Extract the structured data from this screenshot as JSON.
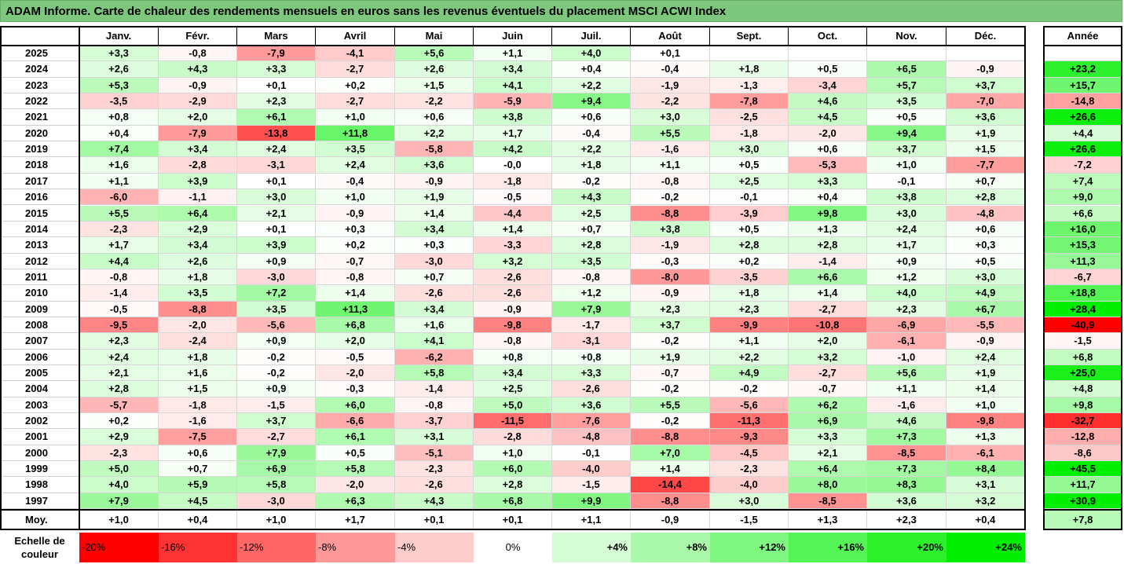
{
  "title": "ADAM Informe. Carte de chaleur des rendements mensuels en euros sans les revenus éventuels du placement MSCI ACWI Index",
  "chart_data": {
    "type": "heatmap",
    "title": "ADAM Informe. Carte de chaleur des rendements mensuels en euros sans les revenus éventuels du placement MSCI ACWI Index",
    "columns": [
      "Janv.",
      "Févr.",
      "Mars",
      "Avril",
      "Mai",
      "Juin",
      "Juil.",
      "Août",
      "Sept.",
      "Oct.",
      "Nov.",
      "Déc."
    ],
    "annual_header": "Année",
    "rows": [
      {
        "year": "2025",
        "values": [
          "+3,3",
          "-0,8",
          "-7,9",
          "-4,1",
          "+5,6",
          "+1,1",
          "+4,0",
          "+0,1",
          "",
          "",
          "",
          ""
        ],
        "annual": ""
      },
      {
        "year": "2024",
        "values": [
          "+2,6",
          "+4,3",
          "+3,3",
          "-2,7",
          "+2,6",
          "+3,4",
          "+0,4",
          "-0,4",
          "+1,8",
          "+0,5",
          "+6,5",
          "-0,9"
        ],
        "annual": "+23,2"
      },
      {
        "year": "2023",
        "values": [
          "+5,3",
          "-0,9",
          "+0,1",
          "+0,2",
          "+1,5",
          "+4,1",
          "+2,2",
          "-1,9",
          "-1,3",
          "-3,4",
          "+5,7",
          "+3,7"
        ],
        "annual": "+15,7"
      },
      {
        "year": "2022",
        "values": [
          "-3,5",
          "-2,9",
          "+2,3",
          "-2,7",
          "-2,2",
          "-5,9",
          "+9,4",
          "-2,2",
          "-7,8",
          "+4,6",
          "+3,5",
          "-7,0"
        ],
        "annual": "-14,8"
      },
      {
        "year": "2021",
        "values": [
          "+0,8",
          "+2,0",
          "+6,1",
          "+1,0",
          "+0,6",
          "+3,8",
          "+0,6",
          "+3,0",
          "-2,5",
          "+4,5",
          "+0,5",
          "+3,6"
        ],
        "annual": "+26,6"
      },
      {
        "year": "2020",
        "values": [
          "+0,4",
          "-7,9",
          "-13,8",
          "+11,8",
          "+2,2",
          "+1,7",
          "-0,4",
          "+5,5",
          "-1,8",
          "-2,0",
          "+9,4",
          "+1,9"
        ],
        "annual": "+4,4"
      },
      {
        "year": "2019",
        "values": [
          "+7,4",
          "+3,4",
          "+2,4",
          "+3,5",
          "-5,8",
          "+4,2",
          "+2,2",
          "-1,6",
          "+3,0",
          "+0,6",
          "+3,7",
          "+1,5"
        ],
        "annual": "+26,6"
      },
      {
        "year": "2018",
        "values": [
          "+1,6",
          "-2,8",
          "-3,1",
          "+2,4",
          "+3,6",
          "-0,0",
          "+1,8",
          "+1,1",
          "+0,5",
          "-5,3",
          "+1,0",
          "-7,7"
        ],
        "annual": "-7,2"
      },
      {
        "year": "2017",
        "values": [
          "+1,1",
          "+3,9",
          "+0,1",
          "-0,4",
          "-0,9",
          "-1,8",
          "-0,2",
          "-0,8",
          "+2,5",
          "+3,3",
          "-0,1",
          "+0,7"
        ],
        "annual": "+7,4"
      },
      {
        "year": "2016",
        "values": [
          "-6,0",
          "-1,1",
          "+3,0",
          "+1,0",
          "+1,9",
          "-0,5",
          "+4,3",
          "-0,2",
          "-0,1",
          "+0,4",
          "+3,8",
          "+2,8"
        ],
        "annual": "+9,0"
      },
      {
        "year": "2015",
        "values": [
          "+5,5",
          "+6,4",
          "+2,1",
          "-0,9",
          "+1,4",
          "-4,4",
          "+2,5",
          "-8,8",
          "-3,9",
          "+9,8",
          "+3,0",
          "-4,8"
        ],
        "annual": "+6,6"
      },
      {
        "year": "2014",
        "values": [
          "-2,3",
          "+2,9",
          "+0,1",
          "+0,3",
          "+3,4",
          "+1,4",
          "+0,7",
          "+3,8",
          "+0,5",
          "+1,3",
          "+2,4",
          "+0,6"
        ],
        "annual": "+16,0"
      },
      {
        "year": "2013",
        "values": [
          "+1,7",
          "+3,4",
          "+3,9",
          "+0,2",
          "+0,3",
          "-3,3",
          "+2,8",
          "-1,9",
          "+2,8",
          "+2,8",
          "+1,7",
          "+0,3"
        ],
        "annual": "+15,3"
      },
      {
        "year": "2012",
        "values": [
          "+4,4",
          "+2,6",
          "+0,9",
          "-0,7",
          "-3,0",
          "+3,2",
          "+3,5",
          "-0,3",
          "+0,2",
          "-1,4",
          "+0,9",
          "+0,5"
        ],
        "annual": "+11,3"
      },
      {
        "year": "2011",
        "values": [
          "-0,8",
          "+1,8",
          "-3,0",
          "-0,8",
          "+0,7",
          "-2,6",
          "-0,8",
          "-8,0",
          "-3,5",
          "+6,6",
          "+1,2",
          "+3,0"
        ],
        "annual": "-6,7"
      },
      {
        "year": "2010",
        "values": [
          "-1,4",
          "+3,5",
          "+7,2",
          "+1,4",
          "-2,6",
          "-2,6",
          "+1,2",
          "-0,9",
          "+1,8",
          "+1,4",
          "+4,0",
          "+4,9"
        ],
        "annual": "+18,8"
      },
      {
        "year": "2009",
        "values": [
          "-0,5",
          "-8,8",
          "+3,5",
          "+11,3",
          "+3,4",
          "-0,9",
          "+7,9",
          "+2,3",
          "+2,3",
          "-2,7",
          "+2,3",
          "+6,7"
        ],
        "annual": "+28,4"
      },
      {
        "year": "2008",
        "values": [
          "-9,5",
          "-2,0",
          "-5,6",
          "+6,8",
          "+1,6",
          "-9,8",
          "-1,7",
          "+3,7",
          "-9,9",
          "-10,8",
          "-6,9",
          "-5,5"
        ],
        "annual": "-40,9"
      },
      {
        "year": "2007",
        "values": [
          "+2,3",
          "-2,4",
          "+0,9",
          "+2,0",
          "+4,1",
          "-0,8",
          "-3,1",
          "-0,2",
          "+1,1",
          "+2,0",
          "-6,1",
          "-0,9"
        ],
        "annual": "-1,5"
      },
      {
        "year": "2006",
        "values": [
          "+2,4",
          "+1,8",
          "-0,2",
          "-0,5",
          "-6,2",
          "+0,8",
          "+0,8",
          "+1,9",
          "+2,2",
          "+3,2",
          "-1,0",
          "+2,4"
        ],
        "annual": "+6,8"
      },
      {
        "year": "2005",
        "values": [
          "+2,1",
          "+1,6",
          "-0,2",
          "-2,0",
          "+5,8",
          "+3,4",
          "+3,3",
          "-0,7",
          "+4,9",
          "-2,7",
          "+5,6",
          "+1,9"
        ],
        "annual": "+25,0"
      },
      {
        "year": "2004",
        "values": [
          "+2,8",
          "+1,5",
          "+0,9",
          "-0,3",
          "-1,4",
          "+2,5",
          "-2,6",
          "-0,2",
          "-0,2",
          "-0,7",
          "+1,1",
          "+1,4"
        ],
        "annual": "+4,8"
      },
      {
        "year": "2003",
        "values": [
          "-5,7",
          "-1,8",
          "-1,5",
          "+6,0",
          "-0,8",
          "+5,0",
          "+3,6",
          "+5,5",
          "-5,6",
          "+6,2",
          "-1,6",
          "+1,0"
        ],
        "annual": "+9,8"
      },
      {
        "year": "2002",
        "values": [
          "+0,2",
          "-1,6",
          "+3,7",
          "-6,6",
          "-3,7",
          "-11,5",
          "-7,6",
          "-0,2",
          "-11,3",
          "+6,9",
          "+4,6",
          "-9,8"
        ],
        "annual": "-32,7"
      },
      {
        "year": "2001",
        "values": [
          "+2,9",
          "-7,5",
          "-2,7",
          "+6,1",
          "+3,1",
          "-2,8",
          "-4,8",
          "-8,8",
          "-9,3",
          "+3,3",
          "+7,3",
          "+1,3"
        ],
        "annual": "-12,8"
      },
      {
        "year": "2000",
        "values": [
          "-2,3",
          "+0,6",
          "+7,9",
          "+0,5",
          "-5,1",
          "+1,0",
          "-0,1",
          "+7,0",
          "-4,5",
          "+2,1",
          "-8,5",
          "-6,1"
        ],
        "annual": "-8,6"
      },
      {
        "year": "1999",
        "values": [
          "+5,0",
          "+0,7",
          "+6,9",
          "+5,8",
          "-2,3",
          "+6,0",
          "-4,0",
          "+1,4",
          "-2,3",
          "+6,4",
          "+7,3",
          "+8,4"
        ],
        "annual": "+45,5"
      },
      {
        "year": "1998",
        "values": [
          "+4,0",
          "+5,9",
          "+5,8",
          "-2,0",
          "-2,6",
          "+2,8",
          "-1,5",
          "-14,4",
          "-4,0",
          "+8,0",
          "+8,3",
          "+3,1"
        ],
        "annual": "+11,7"
      },
      {
        "year": "1997",
        "values": [
          "+7,9",
          "+4,5",
          "-3,0",
          "+6,3",
          "+4,3",
          "+6,8",
          "+9,9",
          "-8,8",
          "+3,0",
          "-8,5",
          "+3,6",
          "+3,2"
        ],
        "annual": "+30,9"
      }
    ],
    "average": {
      "label": "Moy.",
      "values": [
        "+1,0",
        "+0,4",
        "+1,0",
        "+1,7",
        "+0,1",
        "+0,1",
        "+1,1",
        "-0,9",
        "-1,5",
        "+1,3",
        "+2,3",
        "+0,4"
      ],
      "annual": "+7,8"
    },
    "legend": {
      "label_line1": "Echelle de",
      "label_line2": "couleur",
      "stops": [
        {
          "label": "-20%",
          "value": -20
        },
        {
          "label": "-16%",
          "value": -16
        },
        {
          "label": "-12%",
          "value": -12
        },
        {
          "label": "-8%",
          "value": -8
        },
        {
          "label": "-4%",
          "value": -4
        },
        {
          "label": "0%",
          "value": 0
        },
        {
          "label": "+4%",
          "value": 4
        },
        {
          "label": "+8%",
          "value": 8
        },
        {
          "label": "+12%",
          "value": 12
        },
        {
          "label": "+16%",
          "value": 16
        },
        {
          "label": "+20%",
          "value": 20
        },
        {
          "label": "+24%",
          "value": 24
        }
      ]
    },
    "colors": {
      "title_background": "#7ec87e",
      "negative_max": "#ff0000",
      "neutral": "#ffffff",
      "positive_max": "#00ee00"
    }
  }
}
